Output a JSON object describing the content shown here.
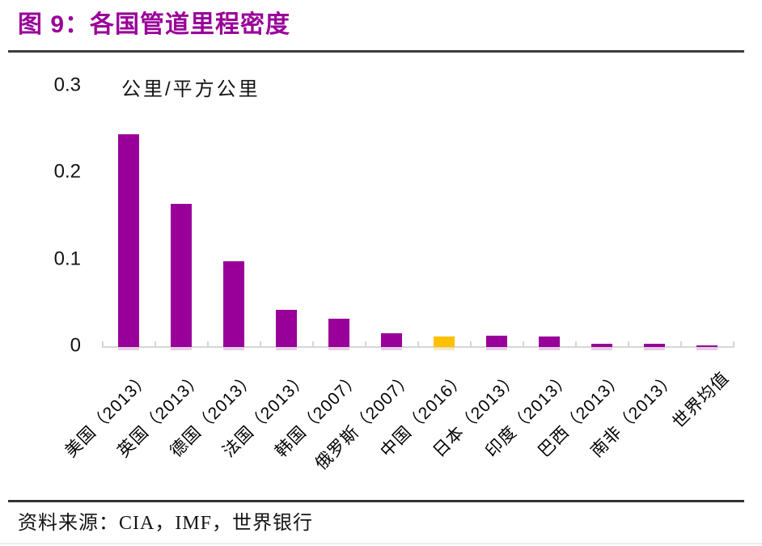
{
  "title": "图 9：各国管道里程密度",
  "source": "资料来源：CIA，IMF，世界银行",
  "chart_data": {
    "type": "bar",
    "title": "各国管道里程密度",
    "unit_label": "公里/平方公里",
    "xlabel": "",
    "ylabel": "公里/平方公里",
    "categories": [
      "美国（2013）",
      "英国（2013）",
      "德国（2013）",
      "法国（2013）",
      "韩国（2007）",
      "俄罗斯（2007）",
      "中国（2016）",
      "日本（2013）",
      "印度（2013）",
      "巴西（2013）",
      "南非（2013）",
      "世界均值"
    ],
    "values": [
      0.245,
      0.165,
      0.099,
      0.043,
      0.033,
      0.016,
      0.012,
      0.013,
      0.012,
      0.004,
      0.004,
      0.001
    ],
    "highlight_index": 6,
    "ylim": [
      0,
      0.3
    ],
    "yticks": [
      0,
      0.1,
      0.2,
      0.3
    ],
    "ytick_labels": [
      "0",
      "0.1",
      "0.2",
      "0.3"
    ],
    "grid": false,
    "legend": false,
    "colors": {
      "bar": "#990099",
      "highlight_bar": "#ffc000",
      "bar_under": "#e9cbe6",
      "highlight_under": "#fbe9bc",
      "title": "#990099",
      "axis": "#d6d6d6",
      "text": "#141414"
    }
  }
}
